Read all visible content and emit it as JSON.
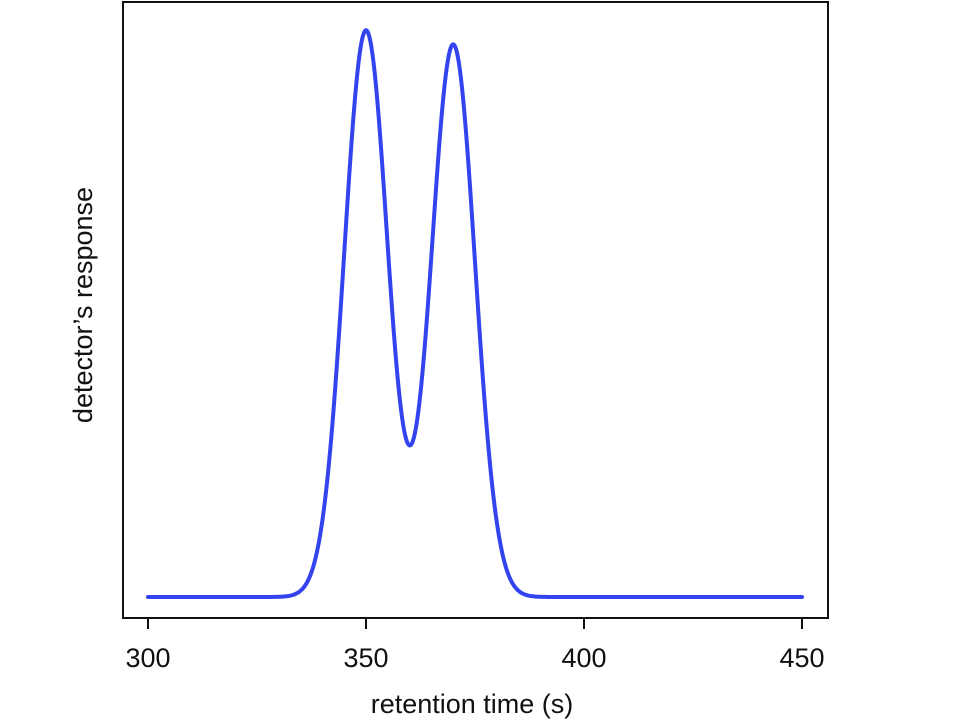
{
  "chart_data": {
    "type": "line",
    "title": "",
    "xlabel": "retention time (s)",
    "ylabel": "detector’s response",
    "xlim": [
      300,
      450
    ],
    "ylim": [
      0,
      1.05
    ],
    "x_ticks": [
      300,
      350,
      400,
      450
    ],
    "grid": false,
    "line_color": "#3344ee",
    "series": [
      {
        "peaks": [
          {
            "center": 350,
            "height": 1.0,
            "sigma": 5.0
          },
          {
            "center": 370,
            "height": 0.975,
            "sigma": 5.0
          }
        ],
        "x": [
          300,
          330,
          335,
          340,
          345,
          350,
          355,
          360,
          365,
          370,
          375,
          380,
          385,
          390,
          400,
          450
        ],
        "y": [
          0.0,
          0.0,
          0.01,
          0.135,
          0.61,
          1.0,
          0.62,
          0.27,
          0.62,
          0.975,
          0.59,
          0.13,
          0.01,
          0.0,
          0.0,
          0.0
        ]
      }
    ]
  }
}
